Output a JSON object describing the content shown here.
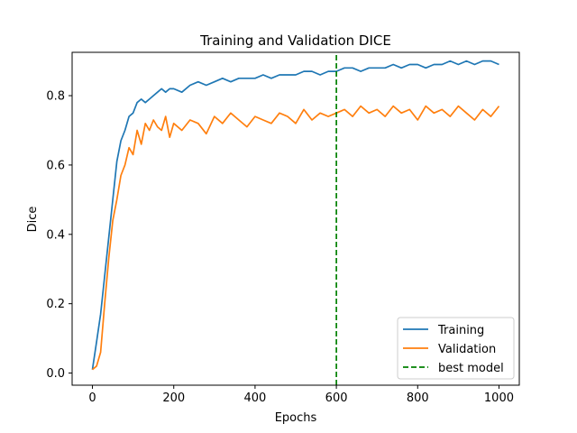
{
  "chart_data": {
    "type": "line",
    "title": "Training and Validation DICE",
    "xlabel": "Epochs",
    "ylabel": "Dice",
    "xlim": [
      -50,
      1050
    ],
    "ylim": [
      -0.035,
      0.925
    ],
    "xticks": [
      0,
      200,
      400,
      600,
      800,
      1000
    ],
    "yticks": [
      0.0,
      0.2,
      0.4,
      0.6,
      0.8
    ],
    "xtick_labels": [
      "0",
      "200",
      "400",
      "600",
      "800",
      "1000"
    ],
    "ytick_labels": [
      "0.0",
      "0.2",
      "0.4",
      "0.6",
      "0.8"
    ],
    "grid": false,
    "legend_position": "lower-right",
    "best_model_epoch": 600,
    "series": [
      {
        "name": "Training",
        "color": "#1f77b4",
        "style": "solid",
        "x": [
          0,
          10,
          20,
          30,
          40,
          50,
          60,
          70,
          80,
          90,
          100,
          110,
          120,
          130,
          140,
          150,
          160,
          170,
          180,
          190,
          200,
          220,
          240,
          260,
          280,
          300,
          320,
          340,
          360,
          380,
          400,
          420,
          440,
          460,
          480,
          500,
          520,
          540,
          560,
          580,
          600,
          620,
          640,
          660,
          680,
          700,
          720,
          740,
          760,
          780,
          800,
          820,
          840,
          860,
          880,
          900,
          920,
          940,
          960,
          980,
          1000
        ],
        "values": [
          0.01,
          0.09,
          0.17,
          0.28,
          0.39,
          0.5,
          0.61,
          0.67,
          0.7,
          0.74,
          0.75,
          0.78,
          0.79,
          0.78,
          0.79,
          0.8,
          0.81,
          0.82,
          0.81,
          0.82,
          0.82,
          0.81,
          0.83,
          0.84,
          0.83,
          0.84,
          0.85,
          0.84,
          0.85,
          0.85,
          0.85,
          0.86,
          0.85,
          0.86,
          0.86,
          0.86,
          0.87,
          0.87,
          0.86,
          0.87,
          0.87,
          0.88,
          0.88,
          0.87,
          0.88,
          0.88,
          0.88,
          0.89,
          0.88,
          0.89,
          0.89,
          0.88,
          0.89,
          0.89,
          0.9,
          0.89,
          0.9,
          0.89,
          0.9,
          0.9,
          0.89
        ]
      },
      {
        "name": "Validation",
        "color": "#ff7f0e",
        "style": "solid",
        "x": [
          0,
          10,
          20,
          30,
          40,
          50,
          60,
          70,
          80,
          90,
          100,
          110,
          120,
          130,
          140,
          150,
          160,
          170,
          180,
          190,
          200,
          220,
          240,
          260,
          280,
          300,
          320,
          340,
          360,
          380,
          400,
          420,
          440,
          460,
          480,
          500,
          520,
          540,
          560,
          580,
          600,
          620,
          640,
          660,
          680,
          700,
          720,
          740,
          760,
          780,
          800,
          820,
          840,
          860,
          880,
          900,
          920,
          940,
          960,
          980,
          1000
        ],
        "values": [
          0.01,
          0.02,
          0.06,
          0.2,
          0.33,
          0.44,
          0.5,
          0.57,
          0.6,
          0.65,
          0.63,
          0.7,
          0.66,
          0.72,
          0.7,
          0.73,
          0.71,
          0.7,
          0.74,
          0.68,
          0.72,
          0.7,
          0.73,
          0.72,
          0.69,
          0.74,
          0.72,
          0.75,
          0.73,
          0.71,
          0.74,
          0.73,
          0.72,
          0.75,
          0.74,
          0.72,
          0.76,
          0.73,
          0.75,
          0.74,
          0.75,
          0.76,
          0.74,
          0.77,
          0.75,
          0.76,
          0.74,
          0.77,
          0.75,
          0.76,
          0.73,
          0.77,
          0.75,
          0.76,
          0.74,
          0.77,
          0.75,
          0.73,
          0.76,
          0.74,
          0.77
        ]
      },
      {
        "name": "best model",
        "color": "#008000",
        "style": "dashed",
        "x": [
          600,
          600
        ],
        "values": [
          -0.035,
          0.925
        ]
      }
    ]
  }
}
